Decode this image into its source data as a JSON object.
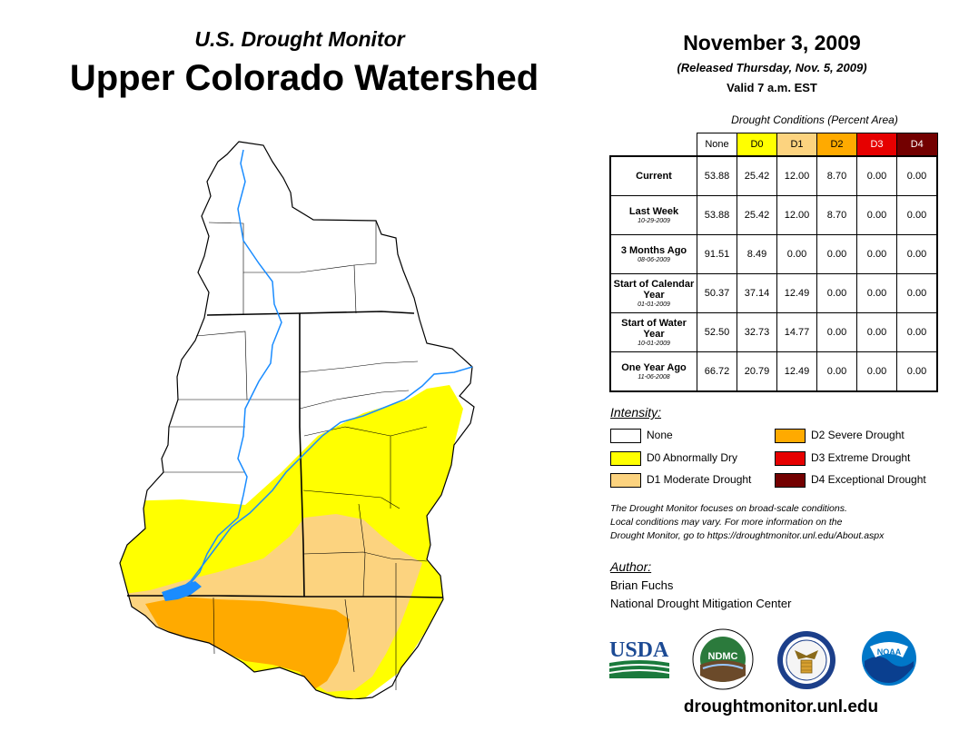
{
  "header": {
    "subtitle": "U.S. Drought Monitor",
    "title": "Upper Colorado Watershed",
    "date": "November 3, 2009",
    "released": "(Released Thursday, Nov. 5, 2009)",
    "valid": "Valid 7 a.m. EST"
  },
  "table": {
    "caption": "Drought Conditions (Percent Area)",
    "columns": [
      "None",
      "D0",
      "D1",
      "D2",
      "D3",
      "D4"
    ],
    "column_colors": [
      "#ffffff",
      "#ffff00",
      "#fcd37f",
      "#ffaa00",
      "#e60000",
      "#730000"
    ],
    "rows": [
      {
        "label": "Current",
        "date": "",
        "values": [
          "53.88",
          "25.42",
          "12.00",
          "8.70",
          "0.00",
          "0.00"
        ]
      },
      {
        "label": "Last Week",
        "date": "10-29-2009",
        "values": [
          "53.88",
          "25.42",
          "12.00",
          "8.70",
          "0.00",
          "0.00"
        ]
      },
      {
        "label": "3 Months Ago",
        "date": "08-06-2009",
        "values": [
          "91.51",
          "8.49",
          "0.00",
          "0.00",
          "0.00",
          "0.00"
        ]
      },
      {
        "label": "Start of Calendar Year",
        "date": "01-01-2009",
        "values": [
          "50.37",
          "37.14",
          "12.49",
          "0.00",
          "0.00",
          "0.00"
        ]
      },
      {
        "label": "Start of Water Year",
        "date": "10-01-2009",
        "values": [
          "52.50",
          "32.73",
          "14.77",
          "0.00",
          "0.00",
          "0.00"
        ]
      },
      {
        "label": "One Year Ago",
        "date": "11-06-2008",
        "values": [
          "66.72",
          "20.79",
          "12.49",
          "0.00",
          "0.00",
          "0.00"
        ]
      }
    ]
  },
  "legend": {
    "title": "Intensity:",
    "items": [
      {
        "label": "None",
        "color": "#ffffff"
      },
      {
        "label": "D0 Abnormally Dry",
        "color": "#ffff00"
      },
      {
        "label": "D1 Moderate Drought",
        "color": "#fcd37f"
      },
      {
        "label": "D2 Severe Drought",
        "color": "#ffaa00"
      },
      {
        "label": "D3 Extreme Drought",
        "color": "#e60000"
      },
      {
        "label": "D4 Exceptional Drought",
        "color": "#730000"
      }
    ]
  },
  "note": {
    "line1": "The Drought Monitor focuses on broad-scale conditions.",
    "line2": "Local conditions may vary. For more information on the",
    "line3": "Drought Monitor, go to https://droughtmonitor.unl.edu/About.aspx"
  },
  "author": {
    "title": "Author:",
    "name": "Brian Fuchs",
    "org": "National Drought Mitigation Center"
  },
  "logos": {
    "usda": "USDA",
    "ndmc": "NDMC",
    "noaa": "NOAA"
  },
  "website": "droughtmonitor.unl.edu"
}
